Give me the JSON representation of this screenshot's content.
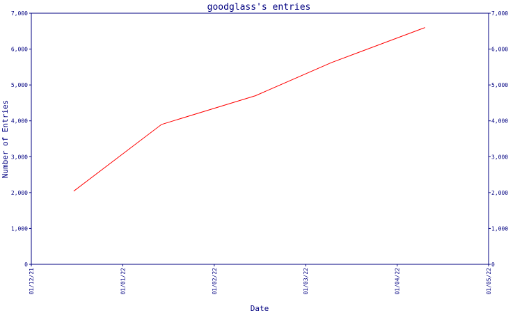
{
  "chart_data": {
    "type": "line",
    "title": "goodglass's entries",
    "xlabel": "Date",
    "ylabel": "Number of Entries",
    "x_ticks": [
      "01/12/21",
      "01/01/22",
      "01/02/22",
      "01/03/22",
      "01/04/22",
      "01/05/22"
    ],
    "x_range": [
      "2021-12-01",
      "2022-05-01"
    ],
    "y_ticks": [
      "0",
      "1,000",
      "2,000",
      "3,000",
      "4,000",
      "5,000",
      "6,000",
      "7,000"
    ],
    "y_ticks_right": [
      "0",
      "1,000",
      "2,000",
      "3,000",
      "4,000",
      "5,000",
      "6,000",
      "7,000"
    ],
    "ylim": [
      0,
      7000
    ],
    "grid": false,
    "series": [
      {
        "x": [
          "2021-12-15",
          "2022-01-13",
          "2022-02-13",
          "2022-03-10",
          "2022-04-10"
        ],
        "y": [
          2040,
          3900,
          4700,
          5620,
          6600
        ]
      }
    ],
    "colors": {
      "axes": "#000080",
      "line": "#ff0000",
      "background": "#ffffff"
    }
  }
}
